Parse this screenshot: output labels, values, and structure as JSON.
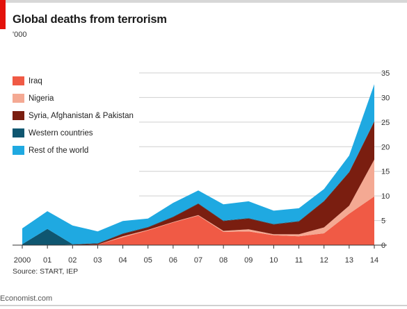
{
  "header": {
    "title": "Global deaths from terrorism",
    "unit": "'000"
  },
  "footer": {
    "source": "Source: START, IEP",
    "watermark": "Economist.com"
  },
  "colors": {
    "iraq": "#f05a45",
    "nigeria": "#f4a993",
    "syria_afghanistan_pakistan": "#7a1e10",
    "western": "#0f5670",
    "rest": "#1fa9e1",
    "brand_red": "#e3120b",
    "grid": "#cfcfcf"
  },
  "chart_data": {
    "type": "area",
    "stacked": true,
    "title": "Global deaths from terrorism",
    "unit": "'000",
    "x": [
      "2000",
      "01",
      "02",
      "03",
      "04",
      "05",
      "06",
      "07",
      "08",
      "09",
      "10",
      "11",
      "12",
      "13",
      "14"
    ],
    "ylim": [
      0,
      35
    ],
    "yticks": [
      0,
      5,
      10,
      15,
      20,
      25,
      30,
      35
    ],
    "y_axis_side": "right",
    "grid": true,
    "legend_position": "top-left",
    "series": [
      {
        "name": "Iraq",
        "color": "#f05a45",
        "values": [
          0,
          0,
          0,
          0.1,
          1.6,
          3.0,
          4.6,
          6.0,
          2.7,
          2.8,
          2.0,
          1.8,
          2.4,
          6.4,
          9.9
        ]
      },
      {
        "name": "Nigeria",
        "color": "#f4a993",
        "values": [
          0,
          0,
          0,
          0,
          0.2,
          0.1,
          0.1,
          0.1,
          0.2,
          0.4,
          0.2,
          0.4,
          1.2,
          1.6,
          7.5
        ]
      },
      {
        "name": "Syria, Afghanistan & Pakistan",
        "color": "#7a1e10",
        "values": [
          0,
          0,
          0.1,
          0.2,
          0.5,
          0.5,
          1.0,
          2.3,
          2.0,
          2.2,
          2.0,
          2.6,
          5.3,
          6.8,
          7.7
        ]
      },
      {
        "name": "Western countries",
        "color": "#0f5670",
        "values": [
          0.2,
          3.3,
          0.1,
          0.1,
          0.1,
          0.1,
          0.1,
          0.1,
          0.1,
          0.1,
          0.1,
          0.1,
          0.1,
          0.1,
          0.1
        ]
      },
      {
        "name": "Rest of the world",
        "color": "#1fa9e1",
        "values": [
          3.2,
          3.6,
          3.8,
          2.4,
          2.5,
          1.7,
          2.8,
          2.6,
          3.3,
          3.4,
          2.7,
          2.6,
          2.4,
          3.3,
          7.5
        ]
      }
    ]
  }
}
